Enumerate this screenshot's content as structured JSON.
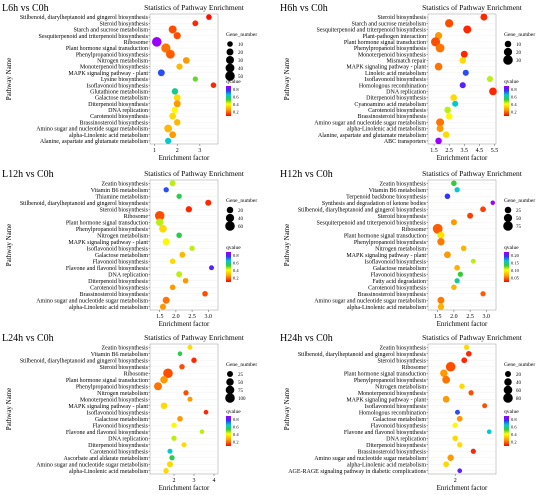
{
  "chart_data": [
    {
      "type": "scatter",
      "panel_label": "L6h vs C0h",
      "title": "Statistics of Pathway Enrichment",
      "xlabel": "Enrichment factor",
      "ylabel": "Pathway Name",
      "xticks": [
        "1",
        "2",
        "3"
      ],
      "xlim": [
        0.8,
        3.8
      ],
      "size_legend": {
        "title": "Gene_number",
        "values": [
          "10",
          "20",
          "30",
          "40",
          "50"
        ]
      },
      "color_legend": {
        "title": "qvalue",
        "values": [
          "0.8",
          "0.6",
          "0.4",
          "0.2"
        ]
      },
      "categories": [
        "Stilbenoid, diarylheptanoid and gingerol biosynthesis",
        "Steroid biosynthesis",
        "Starch and sucrose metabolism",
        "Sesquiterpenoid and triterpenoid biosynthesis",
        "Ribosome",
        "Plant hormone signal transduction",
        "Phenylpropanoid biosynthesis",
        "Nitrogen metabolism",
        "Monoterpenoid biosynthesis",
        "MAPK signaling pathway - plant",
        "Lysine biosynthesis",
        "Isoflavonoid biosynthesis",
        "Glutathione metabolism",
        "Galactose metabolism",
        "Diterpenoid biosynthesis",
        "DNA replication",
        "Carotenoid biosynthesis",
        "Brassinosteroid biosynthesis",
        "Amino sugar and nucleotide sugar metabolism",
        "alpha-Linolenic acid metabolism",
        "Alanine, aspartate and glutamate metabolism"
      ],
      "points": [
        {
          "x": 3.4,
          "size": 10,
          "q": 0.02
        },
        {
          "x": 2.8,
          "size": 12,
          "q": 0.05
        },
        {
          "x": 1.8,
          "size": 30,
          "q": 0.1
        },
        {
          "x": 2.0,
          "size": 22,
          "q": 0.1
        },
        {
          "x": 1.1,
          "size": 50,
          "q": 0.8
        },
        {
          "x": 1.5,
          "size": 45,
          "q": 0.15
        },
        {
          "x": 1.7,
          "size": 40,
          "q": 0.12
        },
        {
          "x": 2.4,
          "size": 18,
          "q": 0.2
        },
        {
          "x": 2.1,
          "size": 14,
          "q": 0.25
        },
        {
          "x": 1.3,
          "size": 20,
          "q": 0.7
        },
        {
          "x": 2.8,
          "size": 8,
          "q": 0.45
        },
        {
          "x": 3.6,
          "size": 10,
          "q": 0.05
        },
        {
          "x": 1.9,
          "size": 16,
          "q": 0.55
        },
        {
          "x": 2.0,
          "size": 18,
          "q": 0.3
        },
        {
          "x": 2.0,
          "size": 20,
          "q": 0.2
        },
        {
          "x": 1.9,
          "size": 16,
          "q": 0.35
        },
        {
          "x": 1.8,
          "size": 18,
          "q": 0.3
        },
        {
          "x": 2.0,
          "size": 16,
          "q": 0.25
        },
        {
          "x": 1.6,
          "size": 28,
          "q": 0.25
        },
        {
          "x": 1.8,
          "size": 18,
          "q": 0.2
        },
        {
          "x": 1.6,
          "size": 14,
          "q": 0.6
        }
      ]
    },
    {
      "type": "scatter",
      "panel_label": "H6h vs C0h",
      "title": "Statistics of Pathway Enrichment",
      "xlabel": "Enrichment factor",
      "ylabel": "Pathway Name",
      "xticks": [
        "1.5",
        "2.5",
        "3.5",
        "4.5",
        "5.5"
      ],
      "xlim": [
        1.1,
        5.6
      ],
      "size_legend": {
        "title": "Gene_number",
        "values": [
          "10",
          "20",
          "30"
        ]
      },
      "color_legend": {
        "title": "qvalue",
        "values": [
          "0.8",
          "0.6",
          "0.4",
          "0.2"
        ]
      },
      "categories": [
        "Steroid biosynthesis",
        "Starch and sucrose metabolism",
        "Sesquiterpenoid and triterpenoid biosynthesis",
        "Plant-pathogen interaction",
        "Plant hormone signal transduction",
        "Phenylpropanoid biosynthesis",
        "Monoterpenoid biosynthesis",
        "Mismatch repair",
        "MAPK signaling pathway - plant",
        "Linoleic acid metabolism",
        "Isoflavonoid biosynthesis",
        "Homologous recombination",
        "DNA replication",
        "Diterpenoid biosynthesis",
        "Cyanoamino acid metabolism",
        "Carotenoid biosynthesis",
        "Brassinosteroid biosynthesis",
        "Amino sugar and nucleotide sugar metabolism",
        "alpha-Linolenic acid metabolism",
        "Alanine, aspartate and glutamate metabolism",
        "ABC transporters"
      ],
      "points": [
        {
          "x": 4.8,
          "size": 12,
          "q": 0.05
        },
        {
          "x": 2.5,
          "size": 20,
          "q": 0.1
        },
        {
          "x": 3.7,
          "size": 18,
          "q": 0.05
        },
        {
          "x": 1.8,
          "size": 14,
          "q": 0.2
        },
        {
          "x": 1.6,
          "size": 26,
          "q": 0.1
        },
        {
          "x": 1.9,
          "size": 24,
          "q": 0.15
        },
        {
          "x": 3.5,
          "size": 12,
          "q": 0.05
        },
        {
          "x": 3.4,
          "size": 10,
          "q": 0.3
        },
        {
          "x": 1.8,
          "size": 16,
          "q": 0.15
        },
        {
          "x": 3.6,
          "size": 8,
          "q": 0.7
        },
        {
          "x": 5.2,
          "size": 8,
          "q": 0.4
        },
        {
          "x": 3.4,
          "size": 8,
          "q": 0.75
        },
        {
          "x": 5.4,
          "size": 16,
          "q": 0.05
        },
        {
          "x": 2.8,
          "size": 10,
          "q": 0.3
        },
        {
          "x": 2.9,
          "size": 8,
          "q": 0.6
        },
        {
          "x": 2.4,
          "size": 10,
          "q": 0.4
        },
        {
          "x": 2.5,
          "size": 10,
          "q": 0.35
        },
        {
          "x": 1.9,
          "size": 18,
          "q": 0.15
        },
        {
          "x": 1.9,
          "size": 12,
          "q": 0.2
        },
        {
          "x": 2.3,
          "size": 10,
          "q": 0.3
        },
        {
          "x": 1.8,
          "size": 10,
          "q": 0.8
        }
      ]
    },
    {
      "type": "scatter",
      "panel_label": "L12h vs C0h",
      "title": "Statistics of Pathway Enrichment",
      "xlabel": "Enrichment factor",
      "ylabel": "Pathway Name",
      "xticks": [
        "1.5",
        "2.0",
        "2.5",
        "3.0"
      ],
      "xlim": [
        1.2,
        3.3
      ],
      "size_legend": {
        "title": "Gene_number",
        "values": [
          "20",
          "40",
          "60"
        ]
      },
      "color_legend": {
        "title": "qvalue",
        "values": [
          "0.8",
          "0.6",
          "0.4",
          "0.2"
        ]
      },
      "categories": [
        "Zeatin biosynthesis",
        "Vitamin B6 metabolism",
        "Thiamine metabolism",
        "Stilbenoid, diarylheptanoid and gingerol biosynthesis",
        "Steroid biosynthesis",
        "Ribosome",
        "Plant hormone signal transduction",
        "Phenylpropanoid biosynthesis",
        "Nitrogen metabolism",
        "MAPK signaling pathway - plant",
        "Isoflavonoid biosynthesis",
        "Galactose metabolism",
        "Flavonoid biosynthesis",
        "Flavone and flavonol biosynthesis",
        "DNA replication",
        "Diterpenoid biosynthesis",
        "Carotenoid biosynthesis",
        "Brassinosteroid biosynthesis",
        "Amino sugar and nucleotide sugar metabolism",
        "alpha-Linolenic acid metabolism"
      ],
      "points": [
        {
          "x": 1.9,
          "size": 14,
          "q": 0.4
        },
        {
          "x": 1.7,
          "size": 10,
          "q": 0.7
        },
        {
          "x": 2.1,
          "size": 10,
          "q": 0.5
        },
        {
          "x": 3.0,
          "size": 16,
          "q": 0.05
        },
        {
          "x": 2.4,
          "size": 18,
          "q": 0.05
        },
        {
          "x": 1.5,
          "size": 60,
          "q": 0.1
        },
        {
          "x": 1.5,
          "size": 30,
          "q": 0.4
        },
        {
          "x": 1.6,
          "size": 32,
          "q": 0.3
        },
        {
          "x": 2.1,
          "size": 12,
          "q": 0.5
        },
        {
          "x": 1.7,
          "size": 24,
          "q": 0.35
        },
        {
          "x": 2.5,
          "size": 10,
          "q": 0.4
        },
        {
          "x": 2.2,
          "size": 14,
          "q": 0.25
        },
        {
          "x": 1.9,
          "size": 12,
          "q": 0.3
        },
        {
          "x": 3.1,
          "size": 8,
          "q": 0.75
        },
        {
          "x": 2.1,
          "size": 14,
          "q": 0.4
        },
        {
          "x": 2.3,
          "size": 12,
          "q": 0.2
        },
        {
          "x": 1.9,
          "size": 12,
          "q": 0.2
        },
        {
          "x": 2.9,
          "size": 12,
          "q": 0.1
        },
        {
          "x": 1.7,
          "size": 24,
          "q": 0.15
        },
        {
          "x": 1.6,
          "size": 16,
          "q": 0.2
        }
      ]
    },
    {
      "type": "scatter",
      "panel_label": "H12h vs C0h",
      "title": "Statistics of Pathway Enrichment",
      "xlabel": "Enrichment factor",
      "ylabel": "Pathway Name",
      "xticks": [
        "1.5",
        "2.0",
        "2.5",
        "3.0"
      ],
      "xlim": [
        1.2,
        3.3
      ],
      "size_legend": {
        "title": "Gene_number",
        "values": [
          "25",
          "50",
          "75"
        ]
      },
      "color_legend": {
        "title": "qvalue",
        "values": [
          "0.20",
          "0.15",
          "0.10",
          "0.05"
        ]
      },
      "categories": [
        "Zeatin biosynthesis",
        "Vitamin B6 metabolism",
        "Terpenoid backbone biosynthesis",
        "Synthesis and degradation of ketone bodies",
        "Stilbenoid, diarylheptanoid and gingerol biosynthesis",
        "Steroid biosynthesis",
        "Sesquiterpenoid and triterpenoid biosynthesis",
        "Ribosome",
        "Plant hormone signal transduction",
        "Phenylpropanoid biosynthesis",
        "Nitrogen metabolism",
        "MAPK signaling pathway - plant",
        "Isoflavonoid biosynthesis",
        "Galactose metabolism",
        "Flavonoid biosynthesis",
        "Fatty acid degradation",
        "Carotenoid biosynthesis",
        "Brassinosteroid biosynthesis",
        "Amino sugar and nucleotide sugar metabolism",
        "alpha-Linolenic acid metabolism"
      ],
      "points": [
        {
          "x": 2.0,
          "size": 14,
          "q": 0.12
        },
        {
          "x": 2.1,
          "size": 12,
          "q": 0.15
        },
        {
          "x": 1.8,
          "size": 14,
          "q": 0.18
        },
        {
          "x": 3.2,
          "size": 6,
          "q": 0.2
        },
        {
          "x": 2.9,
          "size": 16,
          "q": 0.02
        },
        {
          "x": 2.5,
          "size": 18,
          "q": 0.02
        },
        {
          "x": 2.0,
          "size": 20,
          "q": 0.05
        },
        {
          "x": 1.5,
          "size": 80,
          "q": 0.03
        },
        {
          "x": 1.6,
          "size": 34,
          "q": 0.08
        },
        {
          "x": 1.6,
          "size": 36,
          "q": 0.04
        },
        {
          "x": 2.3,
          "size": 14,
          "q": 0.06
        },
        {
          "x": 1.8,
          "size": 28,
          "q": 0.05
        },
        {
          "x": 2.6,
          "size": 10,
          "q": 0.1
        },
        {
          "x": 2.1,
          "size": 16,
          "q": 0.06
        },
        {
          "x": 2.2,
          "size": 12,
          "q": 0.12
        },
        {
          "x": 2.1,
          "size": 12,
          "q": 0.14
        },
        {
          "x": 2.0,
          "size": 14,
          "q": 0.06
        },
        {
          "x": 2.9,
          "size": 12,
          "q": 0.03
        },
        {
          "x": 1.6,
          "size": 30,
          "q": 0.04
        },
        {
          "x": 1.6,
          "size": 22,
          "q": 0.06
        }
      ]
    },
    {
      "type": "scatter",
      "panel_label": "L24h vs C0h",
      "title": "Statistics of Pathway Enrichment",
      "xlabel": "Enrichment factor",
      "ylabel": "Pathway Name",
      "xticks": [
        "2",
        "3",
        "4"
      ],
      "xlim": [
        0.8,
        4.2
      ],
      "size_legend": {
        "title": "Gene_number",
        "values": [
          "25",
          "50",
          "75",
          "100"
        ]
      },
      "color_legend": {
        "title": "qvalue",
        "values": [
          "0.8",
          "0.6",
          "0.4",
          "0.2"
        ]
      },
      "categories": [
        "Zeatin biosynthesis",
        "Vitamin B6 metabolism",
        "Stilbenoid, diarylheptanoid and gingerol biosynthesis",
        "Steroid biosynthesis",
        "Ribosome",
        "Plant hormone signal transduction",
        "Phenylpropanoid biosynthesis",
        "Nitrogen metabolism",
        "Monoterpenoid biosynthesis",
        "MAPK signaling pathway - plant",
        "Isoflavonoid biosynthesis",
        "Galactose metabolism",
        "Flavonoid biosynthesis",
        "Flavone and flavonol biosynthesis",
        "DNA replication",
        "Diterpenoid biosynthesis",
        "Carotenoid biosynthesis",
        "Ascorbate and aldarate metabolism",
        "Amino sugar and nucleotide sugar metabolism",
        "alpha-Linolenic acid metabolism"
      ],
      "points": [
        {
          "x": 2.8,
          "size": 12,
          "q": 0.3
        },
        {
          "x": 2.3,
          "size": 10,
          "q": 0.5
        },
        {
          "x": 3.0,
          "size": 18,
          "q": 0.05
        },
        {
          "x": 2.4,
          "size": 18,
          "q": 0.1
        },
        {
          "x": 1.7,
          "size": 100,
          "q": 0.1
        },
        {
          "x": 1.5,
          "size": 50,
          "q": 0.2
        },
        {
          "x": 1.2,
          "size": 60,
          "q": 0.15
        },
        {
          "x": 2.6,
          "size": 16,
          "q": 0.1
        },
        {
          "x": 2.8,
          "size": 14,
          "q": 0.2
        },
        {
          "x": 1.5,
          "size": 34,
          "q": 0.3
        },
        {
          "x": 3.6,
          "size": 10,
          "q": 0.05
        },
        {
          "x": 2.3,
          "size": 20,
          "q": 0.2
        },
        {
          "x": 2.0,
          "size": 18,
          "q": 0.35
        },
        {
          "x": 3.4,
          "size": 10,
          "q": 0.4
        },
        {
          "x": 2.0,
          "size": 16,
          "q": 0.4
        },
        {
          "x": 2.5,
          "size": 14,
          "q": 0.3
        },
        {
          "x": 1.8,
          "size": 14,
          "q": 0.6
        },
        {
          "x": 1.9,
          "size": 16,
          "q": 0.5
        },
        {
          "x": 1.8,
          "size": 26,
          "q": 0.3
        },
        {
          "x": 1.6,
          "size": 18,
          "q": 0.3
        }
      ]
    },
    {
      "type": "scatter",
      "panel_label": "H24h vs C0h",
      "title": "Statistics of Pathway Enrichment",
      "xlabel": "Enrichment factor",
      "ylabel": "Pathway Name",
      "xticks": [
        "2"
      ],
      "xlim": [
        0.8,
        3.8
      ],
      "size_legend": {
        "title": "Gene_number",
        "values": [
          "20",
          "40",
          "60",
          "80"
        ]
      },
      "color_legend": {
        "title": "qvalue",
        "values": [
          "0.8",
          "0.6",
          "0.4",
          "0.2"
        ]
      },
      "categories": [
        "Zeatin biosynthesis",
        "Stilbenoid, diarylheptanoid and gingerol biosynthesis",
        "Steroid biosynthesis",
        "Ribosome",
        "Plant hormone signal transduction",
        "Phenylpropanoid biosynthesis",
        "Nitrogen metabolism",
        "Monoterpenoid biosynthesis",
        "MAPK signaling pathway - plant",
        "Isoflavonoid biosynthesis",
        "Homologous recombination",
        "Galactose metabolism",
        "Flavonoid biosynthesis",
        "Flavone and flavonol biosynthesis",
        "DNA replication",
        "Diterpenoid biosynthesis",
        "Brassinosteroid biosynthesis",
        "Amino sugar and nucleotide sugar metabolism",
        "alpha-Linolenic acid metabolism",
        "AGE-RAGE signaling pathway in diabetic complications"
      ],
      "points": [
        {
          "x": 2.5,
          "size": 12,
          "q": 0.3
        },
        {
          "x": 2.6,
          "size": 16,
          "q": 0.05
        },
        {
          "x": 2.4,
          "size": 18,
          "q": 0.05
        },
        {
          "x": 1.8,
          "size": 80,
          "q": 0.1
        },
        {
          "x": 1.5,
          "size": 40,
          "q": 0.2
        },
        {
          "x": 1.6,
          "size": 44,
          "q": 0.15
        },
        {
          "x": 2.3,
          "size": 14,
          "q": 0.3
        },
        {
          "x": 2.7,
          "size": 12,
          "q": 0.1
        },
        {
          "x": 1.6,
          "size": 28,
          "q": 0.2
        },
        {
          "x": 3.3,
          "size": 10,
          "q": 0.1
        },
        {
          "x": 2.1,
          "size": 10,
          "q": 0.7
        },
        {
          "x": 2.2,
          "size": 18,
          "q": 0.2
        },
        {
          "x": 2.0,
          "size": 14,
          "q": 0.35
        },
        {
          "x": 3.5,
          "size": 8,
          "q": 0.6
        },
        {
          "x": 2.0,
          "size": 16,
          "q": 0.3
        },
        {
          "x": 2.2,
          "size": 12,
          "q": 0.3
        },
        {
          "x": 2.8,
          "size": 12,
          "q": 0.05
        },
        {
          "x": 1.8,
          "size": 26,
          "q": 0.2
        },
        {
          "x": 1.6,
          "size": 18,
          "q": 0.3
        },
        {
          "x": 2.2,
          "size": 8,
          "q": 0.75
        }
      ]
    }
  ]
}
